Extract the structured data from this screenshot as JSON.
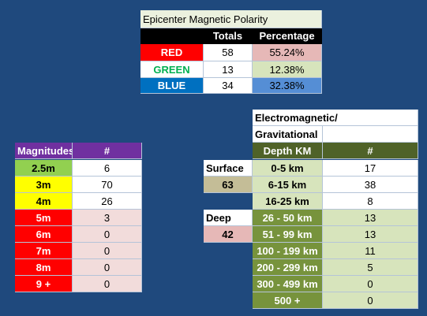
{
  "polarity": {
    "title": "Epicenter Magnetic Polarity",
    "headers": [
      "Totals",
      "Percentage"
    ],
    "rows": [
      {
        "label": "RED",
        "total": "58",
        "percentage": "55.24%"
      },
      {
        "label": "GREEN",
        "total": "13",
        "percentage": "12.38%"
      },
      {
        "label": "BLUE",
        "total": "34",
        "percentage": "32.38%"
      }
    ]
  },
  "magnitudes": {
    "headers": [
      "Magnitudes",
      "#"
    ],
    "rows": [
      {
        "label": "2.5m",
        "count": "6"
      },
      {
        "label": "3m",
        "count": "70"
      },
      {
        "label": "4m",
        "count": "26"
      },
      {
        "label": "5m",
        "count": "3"
      },
      {
        "label": "6m",
        "count": "0"
      },
      {
        "label": "7m",
        "count": "0"
      },
      {
        "label": "8m",
        "count": "0"
      },
      {
        "label": "9 +",
        "count": "0"
      }
    ]
  },
  "depth": {
    "title_line1": "Electromagnetic/",
    "title_line2": "Gravitational",
    "headers": [
      "Depth KM",
      "#"
    ],
    "surface_label": "Surface",
    "surface_total": "63",
    "deep_label": "Deep",
    "deep_total": "42",
    "rows": [
      {
        "range": "0-5 km",
        "count": "17"
      },
      {
        "range": "6-15 km",
        "count": "38"
      },
      {
        "range": "16-25 km",
        "count": "8"
      },
      {
        "range": "26 - 50 km",
        "count": "13"
      },
      {
        "range": "51 - 99 km",
        "count": "13"
      },
      {
        "range": "100 - 199 km",
        "count": "11"
      },
      {
        "range": "200 - 299 km",
        "count": "5"
      },
      {
        "range": "300 - 499 km",
        "count": "0"
      },
      {
        "range": "500 +",
        "count": "0"
      }
    ]
  },
  "colors": {
    "background": "#1f497d",
    "red": "#ff0000",
    "green_text": "#00b050",
    "blue": "#0070c0",
    "purple_header": "#7030a0",
    "olive_header": "#4f6228"
  }
}
